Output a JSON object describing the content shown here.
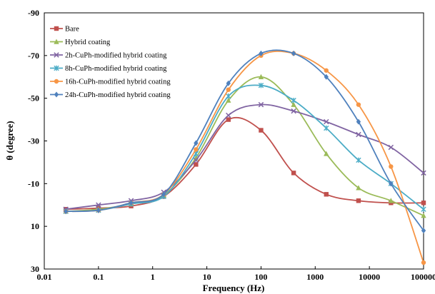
{
  "chart_data": {
    "type": "line",
    "xlabel": "Frequency (Hz)",
    "ylabel": "θ (degree)",
    "x_scale": "log",
    "xlim": [
      0.01,
      100000
    ],
    "ylim": [
      30,
      -90
    ],
    "y_inverted": true,
    "grid": false,
    "legend_position": "top-left",
    "x_ticks": [
      {
        "value": 0.01,
        "label": "0.01"
      },
      {
        "value": 0.1,
        "label": "0.1"
      },
      {
        "value": 1,
        "label": "1"
      },
      {
        "value": 10,
        "label": "10"
      },
      {
        "value": 100,
        "label": "100"
      },
      {
        "value": 1000,
        "label": "1000"
      },
      {
        "value": 10000,
        "label": "10000"
      },
      {
        "value": 100000,
        "label": "100000"
      }
    ],
    "y_ticks": [
      {
        "value": -90,
        "label": "-90"
      },
      {
        "value": -70,
        "label": "-70"
      },
      {
        "value": -50,
        "label": "-50"
      },
      {
        "value": -30,
        "label": "-30"
      },
      {
        "value": -10,
        "label": "-10"
      },
      {
        "value": 10,
        "label": "10"
      },
      {
        "value": 30,
        "label": "30"
      }
    ],
    "series": [
      {
        "name": "Bare",
        "color": "#c0504d",
        "marker": "square",
        "x": [
          0.025,
          0.1,
          0.4,
          1.6,
          6.3,
          25,
          100,
          400,
          1600,
          6300,
          25000,
          100000
        ],
        "y": [
          2,
          1.5,
          0.5,
          -4,
          -19,
          -40,
          -35,
          -15,
          -5,
          -2,
          -1,
          -1
        ]
      },
      {
        "name": "Hybrid coating",
        "color": "#9bbb59",
        "marker": "triangle",
        "x": [
          0.025,
          0.1,
          0.4,
          1.6,
          6.3,
          25,
          100,
          400,
          1600,
          6300,
          25000,
          100000
        ],
        "y": [
          3,
          2,
          -0.5,
          -4.5,
          -22,
          -49,
          -60,
          -47,
          -24,
          -8,
          -2,
          5
        ]
      },
      {
        "name": "2h-CuPh-modified hybrid coating",
        "color": "#8064a2",
        "marker": "x",
        "x": [
          0.025,
          0.1,
          0.4,
          1.6,
          6.3,
          25,
          100,
          400,
          1600,
          6300,
          25000,
          100000
        ],
        "y": [
          2,
          0,
          -2,
          -6,
          -21,
          -42,
          -47,
          -44,
          -39,
          -33,
          -27,
          -15
        ]
      },
      {
        "name": "8h-CuPh-modified hybrid coating",
        "color": "#4bacc6",
        "marker": "star",
        "x": [
          0.025,
          0.1,
          0.4,
          1.6,
          6.3,
          25,
          100,
          400,
          1600,
          6300,
          25000,
          100000
        ],
        "y": [
          3,
          2.5,
          -0.5,
          -4,
          -24,
          -51,
          -56,
          -49,
          -36,
          -21,
          -10,
          2
        ]
      },
      {
        "name": "16h-CuPh-modified hybrid coating",
        "color": "#f79646",
        "marker": "circle",
        "x": [
          0.025,
          0.1,
          0.4,
          1.6,
          6.3,
          25,
          100,
          400,
          1600,
          6300,
          25000,
          100000
        ],
        "y": [
          3,
          2.5,
          -1,
          -5,
          -26,
          -54,
          -70,
          -71,
          -63,
          -47,
          -18,
          27
        ]
      },
      {
        "name": "24h-CuPh-modified hybrid coating",
        "color": "#4f81bd",
        "marker": "diamond",
        "x": [
          0.025,
          0.1,
          0.4,
          1.6,
          6.3,
          25,
          100,
          400,
          1600,
          6300,
          25000,
          100000
        ],
        "y": [
          3,
          2.5,
          -1,
          -5,
          -29,
          -57,
          -71,
          -71,
          -60,
          -39,
          -10,
          12
        ]
      }
    ]
  }
}
